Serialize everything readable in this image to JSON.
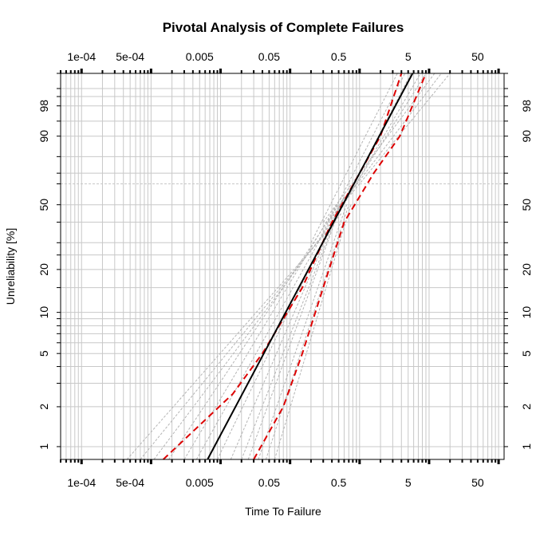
{
  "chart_data": {
    "type": "line",
    "title": "Pivotal Analysis of Complete Failures",
    "xlabel": "Time To Failure",
    "ylabel": "Unreliability [%]",
    "x_scale": "log10",
    "y_scale": "weibull",
    "xlim": [
      5e-05,
      120
    ],
    "ylim": [
      0.8,
      99.9
    ],
    "grid": true,
    "x_ticks": [
      {
        "value": 0.0001,
        "label": "1e-04"
      },
      {
        "value": 0.0005,
        "label": "5e-04"
      },
      {
        "value": 0.005,
        "label": "0.005"
      },
      {
        "value": 0.05,
        "label": "0.05"
      },
      {
        "value": 0.5,
        "label": "0.5"
      },
      {
        "value": 5,
        "label": "5"
      },
      {
        "value": 50,
        "label": "50"
      }
    ],
    "y_ticks": [
      {
        "value": 1,
        "label": "1"
      },
      {
        "value": 2,
        "label": "2"
      },
      {
        "value": 5,
        "label": "5"
      },
      {
        "value": 10,
        "label": "10"
      },
      {
        "value": 20,
        "label": "20"
      },
      {
        "value": 50,
        "label": "50"
      },
      {
        "value": 90,
        "label": "90"
      },
      {
        "value": 98,
        "label": "98"
      }
    ],
    "fit_line": {
      "points": [
        [
          0.0065,
          0.8
        ],
        [
          5.8,
          99.9
        ]
      ],
      "color": "#000000",
      "style": "solid"
    },
    "confidence_bounds": [
      {
        "points": [
          [
            0.0015,
            0.8
          ],
          [
            0.015,
            2.5
          ],
          [
            0.04,
            5
          ],
          [
            0.15,
            15
          ],
          [
            0.4,
            40
          ],
          [
            1.0,
            70
          ],
          [
            2.0,
            90
          ],
          [
            4.0,
            99.9
          ]
        ],
        "color": "#dd0000",
        "style": "dashed"
      },
      {
        "points": [
          [
            0.03,
            0.8
          ],
          [
            0.08,
            2
          ],
          [
            0.15,
            5
          ],
          [
            0.3,
            15
          ],
          [
            0.6,
            40
          ],
          [
            1.6,
            70
          ],
          [
            3.8,
            90
          ],
          [
            9.0,
            99.9
          ]
        ],
        "color": "#dd0000",
        "style": "dashed"
      }
    ],
    "pivotal_lines": [
      {
        "points": [
          [
            0.00045,
            0.8
          ],
          [
            0.45,
            40
          ]
        ]
      },
      {
        "points": [
          [
            0.0007,
            0.8
          ],
          [
            0.55,
            45
          ]
        ]
      },
      {
        "points": [
          [
            0.0011,
            0.8
          ],
          [
            0.5,
            45
          ]
        ]
      },
      {
        "points": [
          [
            0.0018,
            0.8
          ],
          [
            0.5,
            50
          ]
        ]
      },
      {
        "points": [
          [
            0.003,
            0.8
          ],
          [
            0.55,
            55
          ]
        ]
      },
      {
        "points": [
          [
            0.0045,
            0.8
          ],
          [
            0.6,
            55
          ]
        ]
      },
      {
        "points": [
          [
            0.009,
            0.8
          ],
          [
            0.6,
            55
          ]
        ]
      },
      {
        "points": [
          [
            0.014,
            0.8
          ],
          [
            0.6,
            55
          ]
        ]
      },
      {
        "points": [
          [
            0.02,
            0.8
          ],
          [
            0.6,
            55
          ]
        ]
      },
      {
        "points": [
          [
            0.025,
            0.8
          ],
          [
            0.6,
            55
          ]
        ]
      },
      {
        "points": [
          [
            0.035,
            0.8
          ],
          [
            0.65,
            50
          ]
        ]
      },
      {
        "points": [
          [
            0.045,
            0.8
          ],
          [
            0.7,
            50
          ]
        ]
      },
      {
        "points": [
          [
            0.06,
            0.8
          ],
          [
            0.75,
            50
          ]
        ]
      },
      {
        "points": [
          [
            0.2,
            30
          ],
          [
            3.5,
            99.9
          ]
        ]
      },
      {
        "points": [
          [
            0.25,
            30
          ],
          [
            4.5,
            99.9
          ]
        ]
      },
      {
        "points": [
          [
            0.3,
            30
          ],
          [
            5.5,
            99.9
          ]
        ]
      },
      {
        "points": [
          [
            0.35,
            35
          ],
          [
            7.5,
            99.9
          ]
        ]
      },
      {
        "points": [
          [
            0.4,
            40
          ],
          [
            9,
            99.9
          ]
        ]
      },
      {
        "points": [
          [
            0.3,
            40
          ],
          [
            12,
            99.9
          ]
        ]
      },
      {
        "points": [
          [
            0.35,
            40
          ],
          [
            15,
            99.9
          ]
        ]
      },
      {
        "points": [
          [
            0.45,
            45
          ],
          [
            20,
            99.9
          ]
        ]
      }
    ],
    "pivotal_color": "#b4b4b4"
  }
}
